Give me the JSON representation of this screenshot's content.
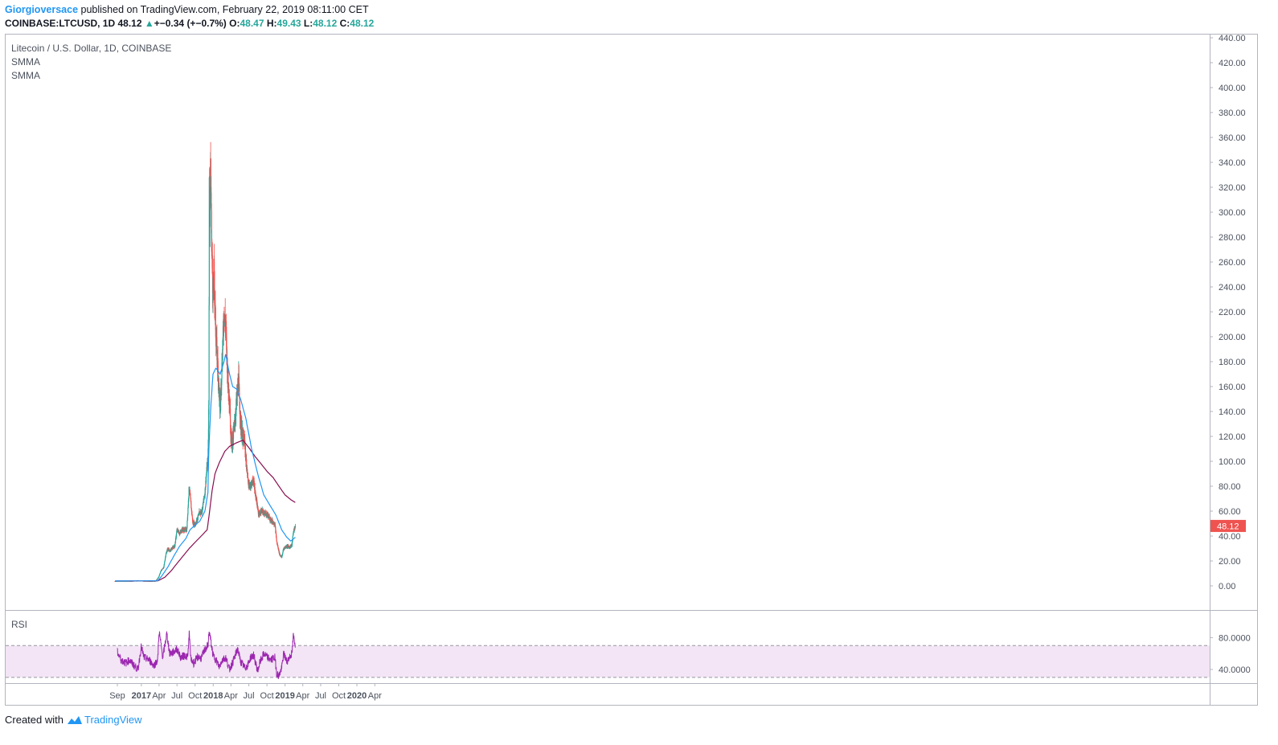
{
  "header": {
    "author": "Giorgioversace",
    "published_text": "published on TradingView.com, February 22, 2019 08:11:00 CET",
    "symbol": "COINBASE:LTCUSD, 1D",
    "change": "48.12",
    "change_delta": "+−0.34 (+−0.7%)",
    "o_label": "O:",
    "o_value": "48.47",
    "h_label": "H:",
    "h_value": "49.43",
    "l_label": "L:",
    "l_value": "48.12",
    "c_label": "C:",
    "c_value": "48.12"
  },
  "legend": {
    "title": "Litecoin / U.S. Dollar, 1D, COINBASE",
    "ind1": "SMMA",
    "ind2": "SMMA",
    "rsi": "RSI"
  },
  "price_badge": "48.12",
  "footer": {
    "created_with": "Created with",
    "brand": "TradingView"
  },
  "colors": {
    "up": "#26a69a",
    "down": "#ef5350",
    "smma_fast": "#2196f3",
    "smma_slow": "#880e4f",
    "rsi_line": "#9c27b0",
    "rsi_band": "#f3e5f5",
    "badge": "#ef5350",
    "grid": "#f0f3fa",
    "axis_text": "#4c525e"
  },
  "chart_data": {
    "type": "candlestick",
    "y_axis": {
      "min": 0,
      "max": 440,
      "ticks": [
        0,
        20,
        40,
        60,
        80,
        100,
        120,
        140,
        160,
        180,
        200,
        220,
        240,
        260,
        280,
        300,
        320,
        340,
        360,
        380,
        400,
        420,
        440
      ],
      "tick_labels": [
        "0.00",
        "20.00",
        "40.00",
        "60.00",
        "80.00",
        "100.00",
        "120.00",
        "140.00",
        "160.00",
        "180.00",
        "200.00",
        "220.00",
        "240.00",
        "260.00",
        "280.00",
        "300.00",
        "320.00",
        "340.00",
        "360.00",
        "380.00",
        "400.00",
        "420.00",
        "440.00"
      ]
    },
    "rsi_axis": {
      "ticks": [
        40,
        80
      ],
      "tick_labels": [
        "40.0000",
        "80.0000"
      ],
      "band": [
        30,
        70
      ]
    },
    "x_axis": {
      "labels": [
        {
          "label": "Sep",
          "date": "2016-09-01",
          "bold": false
        },
        {
          "label": "2017",
          "date": "2017-01-01",
          "bold": true
        },
        {
          "label": "Apr",
          "date": "2017-04-01",
          "bold": false
        },
        {
          "label": "Jul",
          "date": "2017-07-01",
          "bold": false
        },
        {
          "label": "Oct",
          "date": "2017-10-01",
          "bold": false
        },
        {
          "label": "2018",
          "date": "2018-01-01",
          "bold": true
        },
        {
          "label": "Apr",
          "date": "2018-04-01",
          "bold": false
        },
        {
          "label": "Jul",
          "date": "2018-07-01",
          "bold": false
        },
        {
          "label": "Oct",
          "date": "2018-10-01",
          "bold": false
        },
        {
          "label": "2019",
          "date": "2019-01-01",
          "bold": true
        },
        {
          "label": "Apr",
          "date": "2019-04-01",
          "bold": false
        },
        {
          "label": "Jul",
          "date": "2019-07-01",
          "bold": false
        },
        {
          "label": "Oct",
          "date": "2019-10-01",
          "bold": false
        },
        {
          "label": "2020",
          "date": "2020-01-01",
          "bold": true
        },
        {
          "label": "Apr",
          "date": "2020-04-01",
          "bold": false
        }
      ]
    },
    "price_path": [
      [
        "2016-08-20",
        3.8
      ],
      [
        "2016-09-15",
        3.9
      ],
      [
        "2016-10-15",
        3.8
      ],
      [
        "2016-11-15",
        3.9
      ],
      [
        "2016-12-15",
        4.2
      ],
      [
        "2017-01-15",
        4.0
      ],
      [
        "2017-02-15",
        3.8
      ],
      [
        "2017-03-15",
        4.0
      ],
      [
        "2017-03-30",
        7
      ],
      [
        "2017-04-10",
        12
      ],
      [
        "2017-04-25",
        15
      ],
      [
        "2017-05-05",
        25
      ],
      [
        "2017-05-15",
        30
      ],
      [
        "2017-05-25",
        28
      ],
      [
        "2017-06-05",
        30
      ],
      [
        "2017-06-20",
        32
      ],
      [
        "2017-07-01",
        45
      ],
      [
        "2017-07-15",
        42
      ],
      [
        "2017-07-25",
        45
      ],
      [
        "2017-08-05",
        45
      ],
      [
        "2017-08-20",
        45
      ],
      [
        "2017-09-01",
        80
      ],
      [
        "2017-09-10",
        65
      ],
      [
        "2017-09-20",
        50
      ],
      [
        "2017-10-05",
        50
      ],
      [
        "2017-10-20",
        58
      ],
      [
        "2017-11-05",
        60
      ],
      [
        "2017-11-20",
        75
      ],
      [
        "2017-11-30",
        95
      ],
      [
        "2017-12-05",
        100
      ],
      [
        "2017-12-10",
        150
      ],
      [
        "2017-12-12",
        320
      ],
      [
        "2017-12-15",
        300
      ],
      [
        "2017-12-19",
        340
      ],
      [
        "2017-12-24",
        280
      ],
      [
        "2017-12-31",
        230
      ],
      [
        "2018-01-05",
        250
      ],
      [
        "2018-01-15",
        200
      ],
      [
        "2018-01-25",
        175
      ],
      [
        "2018-02-05",
        140
      ],
      [
        "2018-02-15",
        180
      ],
      [
        "2018-02-25",
        220
      ],
      [
        "2018-03-05",
        210
      ],
      [
        "2018-03-15",
        170
      ],
      [
        "2018-03-25",
        150
      ],
      [
        "2018-04-01",
        120
      ],
      [
        "2018-04-10",
        115
      ],
      [
        "2018-04-20",
        130
      ],
      [
        "2018-05-01",
        150
      ],
      [
        "2018-05-10",
        165
      ],
      [
        "2018-05-20",
        130
      ],
      [
        "2018-06-01",
        118
      ],
      [
        "2018-06-10",
        115
      ],
      [
        "2018-06-20",
        95
      ],
      [
        "2018-07-01",
        80
      ],
      [
        "2018-07-15",
        82
      ],
      [
        "2018-07-25",
        85
      ],
      [
        "2018-08-05",
        72
      ],
      [
        "2018-08-20",
        57
      ],
      [
        "2018-09-05",
        60
      ],
      [
        "2018-09-20",
        58
      ],
      [
        "2018-10-05",
        57
      ],
      [
        "2018-10-20",
        53
      ],
      [
        "2018-11-10",
        50
      ],
      [
        "2018-11-20",
        35
      ],
      [
        "2018-12-05",
        25
      ],
      [
        "2018-12-15",
        23
      ],
      [
        "2018-12-25",
        30
      ],
      [
        "2019-01-10",
        32
      ],
      [
        "2019-01-25",
        31
      ],
      [
        "2019-02-05",
        33
      ],
      [
        "2019-02-12",
        43
      ],
      [
        "2019-02-22",
        48.12
      ]
    ],
    "smma_fast_path": [
      [
        "2016-08-20",
        3.9
      ],
      [
        "2017-03-25",
        4.1
      ],
      [
        "2017-04-15",
        8
      ],
      [
        "2017-05-15",
        15
      ],
      [
        "2017-06-15",
        24
      ],
      [
        "2017-07-15",
        32
      ],
      [
        "2017-08-15",
        38
      ],
      [
        "2017-09-05",
        45
      ],
      [
        "2017-09-25",
        48
      ],
      [
        "2017-10-25",
        52
      ],
      [
        "2017-11-20",
        60
      ],
      [
        "2017-12-05",
        75
      ],
      [
        "2017-12-10",
        110
      ],
      [
        "2017-12-20",
        145
      ],
      [
        "2017-12-31",
        170
      ],
      [
        "2018-01-15",
        175
      ],
      [
        "2018-02-05",
        170
      ],
      [
        "2018-02-25",
        180
      ],
      [
        "2018-03-05",
        186
      ],
      [
        "2018-03-25",
        170
      ],
      [
        "2018-04-10",
        160
      ],
      [
        "2018-04-30",
        158
      ],
      [
        "2018-05-20",
        150
      ],
      [
        "2018-06-15",
        135
      ],
      [
        "2018-07-15",
        110
      ],
      [
        "2018-08-15",
        90
      ],
      [
        "2018-09-15",
        73
      ],
      [
        "2018-10-15",
        65
      ],
      [
        "2018-11-15",
        57
      ],
      [
        "2018-12-15",
        45
      ],
      [
        "2019-01-10",
        39
      ],
      [
        "2019-01-30",
        36
      ],
      [
        "2019-02-22",
        39
      ]
    ],
    "smma_slow_path": [
      [
        "2016-08-20",
        3.9
      ],
      [
        "2017-03-25",
        4
      ],
      [
        "2017-05-01",
        7
      ],
      [
        "2017-06-01",
        12
      ],
      [
        "2017-07-01",
        18
      ],
      [
        "2017-08-01",
        24
      ],
      [
        "2017-09-01",
        30
      ],
      [
        "2017-10-01",
        35
      ],
      [
        "2017-11-01",
        40
      ],
      [
        "2017-12-01",
        45
      ],
      [
        "2017-12-10",
        55
      ],
      [
        "2017-12-25",
        75
      ],
      [
        "2018-01-10",
        90
      ],
      [
        "2018-02-01",
        99
      ],
      [
        "2018-03-01",
        108
      ],
      [
        "2018-03-25",
        112
      ],
      [
        "2018-05-01",
        115
      ],
      [
        "2018-06-01",
        117
      ],
      [
        "2018-07-01",
        111
      ],
      [
        "2018-08-01",
        104
      ],
      [
        "2018-09-01",
        98
      ],
      [
        "2018-10-01",
        92
      ],
      [
        "2018-11-01",
        87
      ],
      [
        "2018-12-01",
        80
      ],
      [
        "2019-01-01",
        73
      ],
      [
        "2019-02-01",
        69
      ],
      [
        "2019-02-22",
        67
      ]
    ],
    "rsi_path": [
      [
        "2016-09-01",
        62
      ],
      [
        "2016-09-20",
        52
      ],
      [
        "2016-10-15",
        48
      ],
      [
        "2016-11-01",
        52
      ],
      [
        "2016-11-20",
        46
      ],
      [
        "2016-12-15",
        40
      ],
      [
        "2016-12-31",
        68
      ],
      [
        "2017-01-15",
        55
      ],
      [
        "2017-02-10",
        52
      ],
      [
        "2017-03-05",
        45
      ],
      [
        "2017-03-25",
        52
      ],
      [
        "2017-04-01",
        88
      ],
      [
        "2017-04-20",
        55
      ],
      [
        "2017-05-10",
        85
      ],
      [
        "2017-05-25",
        60
      ],
      [
        "2017-06-15",
        62
      ],
      [
        "2017-07-01",
        66
      ],
      [
        "2017-07-20",
        55
      ],
      [
        "2017-08-10",
        58
      ],
      [
        "2017-08-25",
        55
      ],
      [
        "2017-09-01",
        86
      ],
      [
        "2017-09-10",
        52
      ],
      [
        "2017-09-25",
        48
      ],
      [
        "2017-10-15",
        56
      ],
      [
        "2017-11-01",
        54
      ],
      [
        "2017-11-20",
        65
      ],
      [
        "2017-12-05",
        70
      ],
      [
        "2017-12-12",
        88
      ],
      [
        "2017-12-31",
        58
      ],
      [
        "2018-01-15",
        52
      ],
      [
        "2018-02-01",
        43
      ],
      [
        "2018-02-15",
        52
      ],
      [
        "2018-03-05",
        55
      ],
      [
        "2018-03-25",
        40
      ],
      [
        "2018-04-15",
        52
      ],
      [
        "2018-05-05",
        66
      ],
      [
        "2018-05-20",
        50
      ],
      [
        "2018-06-10",
        42
      ],
      [
        "2018-06-25",
        45
      ],
      [
        "2018-07-10",
        55
      ],
      [
        "2018-07-25",
        58
      ],
      [
        "2018-08-15",
        38
      ],
      [
        "2018-08-25",
        48
      ],
      [
        "2018-09-15",
        60
      ],
      [
        "2018-10-05",
        55
      ],
      [
        "2018-10-20",
        52
      ],
      [
        "2018-11-10",
        55
      ],
      [
        "2018-11-20",
        35
      ],
      [
        "2018-12-01",
        32
      ],
      [
        "2018-12-15",
        42
      ],
      [
        "2018-12-25",
        60
      ],
      [
        "2019-01-10",
        50
      ],
      [
        "2019-01-25",
        56
      ],
      [
        "2019-02-05",
        60
      ],
      [
        "2019-02-12",
        82
      ],
      [
        "2019-02-22",
        72
      ]
    ]
  }
}
